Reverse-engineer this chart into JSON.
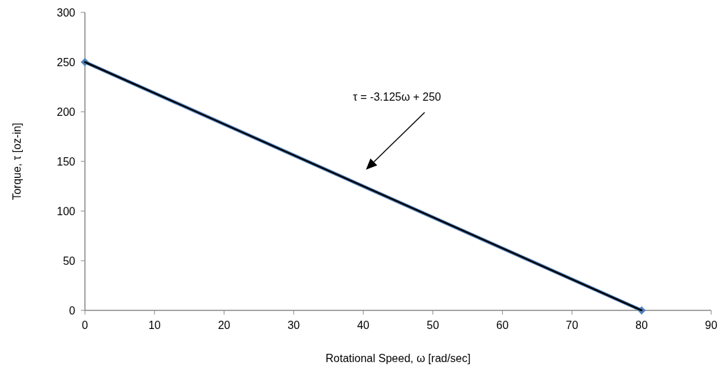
{
  "chart_data": {
    "type": "line",
    "xlabel": "Rotational Speed, ω [rad/sec]",
    "ylabel": "Torque, τ [oz-in]",
    "x": [
      0,
      80
    ],
    "series": [
      {
        "color": "#4f81bd",
        "values": [
          250,
          0
        ],
        "marker": "diamond"
      },
      {
        "type": "line",
        "color": "#000000",
        "x": [
          0,
          80
        ],
        "values": [
          250,
          0
        ],
        "marker": "none"
      }
    ],
    "xlim": [
      0,
      90
    ],
    "xticks": [
      0,
      10,
      20,
      30,
      40,
      50,
      60,
      70,
      80,
      90
    ],
    "ylim": [
      0,
      300
    ],
    "yticks": [
      0,
      50,
      100,
      150,
      200,
      250,
      300
    ],
    "grid": false,
    "line_style": "solid",
    "annotations": [
      "τ = -3.125ω + 250"
    ]
  }
}
